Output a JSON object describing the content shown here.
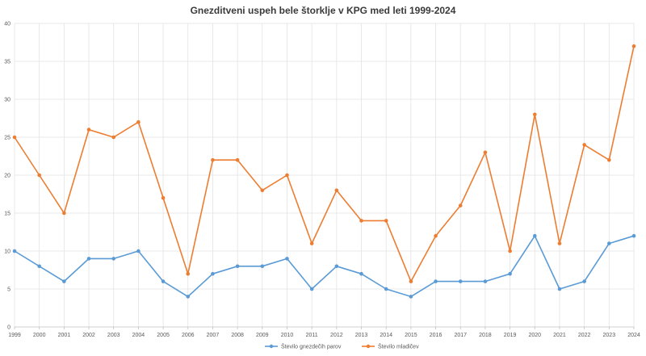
{
  "chart_data": {
    "type": "line",
    "title": "Gnezditveni uspeh bele štorklje v KPG med leti 1999-2024",
    "xlabel": "",
    "ylabel": "",
    "categories": [
      "1999",
      "2000",
      "2001",
      "2002",
      "2003",
      "2004",
      "2005",
      "2006",
      "2007",
      "2008",
      "2009",
      "2010",
      "2011",
      "2012",
      "2013",
      "2014",
      "2015",
      "2016",
      "2017",
      "2018",
      "2019",
      "2020",
      "2021",
      "2022",
      "2023",
      "2024"
    ],
    "ylim": [
      0,
      40
    ],
    "yticks": [
      0,
      5,
      10,
      15,
      20,
      25,
      30,
      35,
      40
    ],
    "grid": true,
    "legend_position": "bottom",
    "series": [
      {
        "name": "Število gnezdečih parov",
        "color": "#5b9bd5",
        "values": [
          10,
          8,
          6,
          9,
          9,
          10,
          6,
          4,
          7,
          8,
          8,
          9,
          5,
          8,
          7,
          5,
          4,
          6,
          6,
          6,
          7,
          12,
          5,
          6,
          11,
          12
        ]
      },
      {
        "name": "Število mladičev",
        "color": "#ed7d31",
        "values": [
          25,
          20,
          15,
          26,
          25,
          27,
          17,
          7,
          22,
          22,
          18,
          20,
          11,
          18,
          14,
          14,
          6,
          12,
          16,
          23,
          10,
          28,
          11,
          24,
          22,
          37
        ]
      }
    ]
  }
}
